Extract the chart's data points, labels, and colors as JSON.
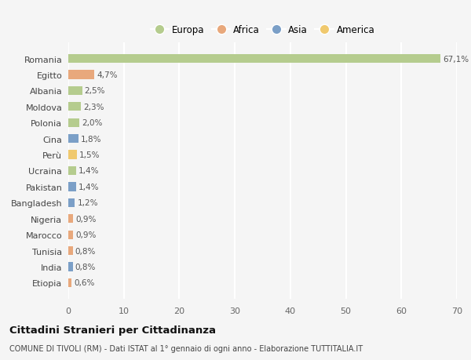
{
  "countries": [
    "Romania",
    "Egitto",
    "Albania",
    "Moldova",
    "Polonia",
    "Cina",
    "Perù",
    "Ucraina",
    "Pakistan",
    "Bangladesh",
    "Nigeria",
    "Marocco",
    "Tunisia",
    "India",
    "Etiopia"
  ],
  "values": [
    67.1,
    4.7,
    2.5,
    2.3,
    2.0,
    1.8,
    1.5,
    1.4,
    1.4,
    1.2,
    0.9,
    0.9,
    0.8,
    0.8,
    0.6
  ],
  "labels": [
    "67,1%",
    "4,7%",
    "2,5%",
    "2,3%",
    "2,0%",
    "1,8%",
    "1,5%",
    "1,4%",
    "1,4%",
    "1,2%",
    "0,9%",
    "0,9%",
    "0,8%",
    "0,8%",
    "0,6%"
  ],
  "continents": [
    "Europa",
    "Africa",
    "Europa",
    "Europa",
    "Europa",
    "Asia",
    "America",
    "Europa",
    "Asia",
    "Asia",
    "Africa",
    "Africa",
    "Africa",
    "Asia",
    "Africa"
  ],
  "continent_colors": {
    "Europa": "#b5cc8e",
    "Africa": "#e8a87c",
    "Asia": "#7b9fc7",
    "America": "#f0c96e"
  },
  "legend_order": [
    "Europa",
    "Africa",
    "Asia",
    "America"
  ],
  "title": "Cittadini Stranieri per Cittadinanza",
  "subtitle": "COMUNE DI TIVOLI (RM) - Dati ISTAT al 1° gennaio di ogni anno - Elaborazione TUTTITALIA.IT",
  "xlim": [
    0,
    70
  ],
  "xticks": [
    0,
    10,
    20,
    30,
    40,
    50,
    60,
    70
  ],
  "bg_color": "#f5f5f5",
  "grid_color": "#ffffff",
  "bar_height": 0.55
}
